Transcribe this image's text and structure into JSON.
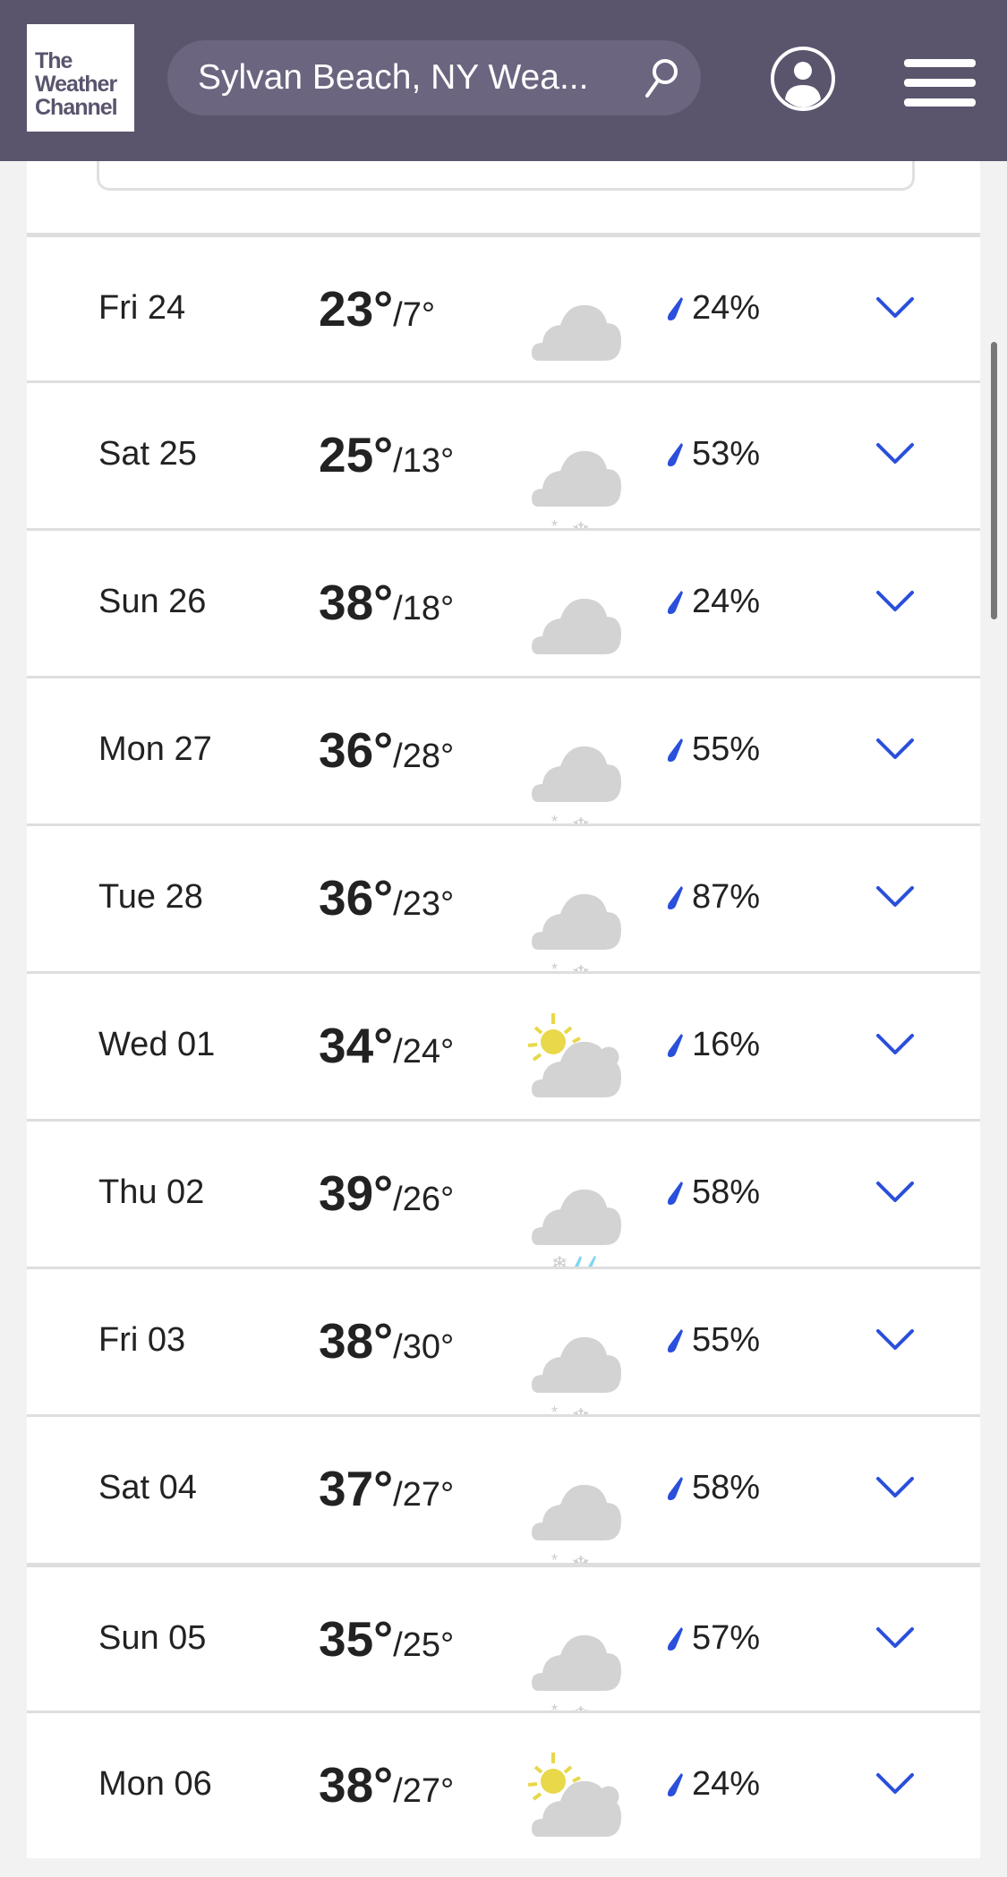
{
  "header": {
    "logo_text": "The Weather Channel",
    "logo_lines": [
      "The",
      "Weather",
      "Channel"
    ],
    "search_value": "Sylvan Beach, NY Wea...",
    "bg_color": "#5a546d"
  },
  "accent_color": "#2a4fdb",
  "days": [
    {
      "date": "Fri 24",
      "hi": "23°",
      "lo": "/7°",
      "icon": "cloudy-icon",
      "precip": "24%"
    },
    {
      "date": "Sat 25",
      "hi": "25°",
      "lo": "/13°",
      "icon": "snow-showers-icon",
      "precip": "53%"
    },
    {
      "date": "Sun 26",
      "hi": "38°",
      "lo": "/18°",
      "icon": "cloudy-icon",
      "precip": "24%"
    },
    {
      "date": "Mon 27",
      "hi": "36°",
      "lo": "/28°",
      "icon": "snow-showers-icon",
      "precip": "55%"
    },
    {
      "date": "Tue 28",
      "hi": "36°",
      "lo": "/23°",
      "icon": "snow-showers-icon",
      "precip": "87%"
    },
    {
      "date": "Wed 01",
      "hi": "34°",
      "lo": "/24°",
      "icon": "partly-cloudy-icon",
      "precip": "16%"
    },
    {
      "date": "Thu 02",
      "hi": "39°",
      "lo": "/26°",
      "icon": "rain-snow-icon",
      "precip": "58%"
    },
    {
      "date": "Fri 03",
      "hi": "38°",
      "lo": "/30°",
      "icon": "snow-showers-icon",
      "precip": "55%"
    },
    {
      "date": "Sat 04",
      "hi": "37°",
      "lo": "/27°",
      "icon": "snow-showers-icon",
      "precip": "58%"
    },
    {
      "date": "Sun 05",
      "hi": "35°",
      "lo": "/25°",
      "icon": "snow-showers-icon",
      "precip": "57%"
    },
    {
      "date": "Mon 06",
      "hi": "38°",
      "lo": "/27°",
      "icon": "partly-cloudy-icon",
      "precip": "24%"
    }
  ]
}
